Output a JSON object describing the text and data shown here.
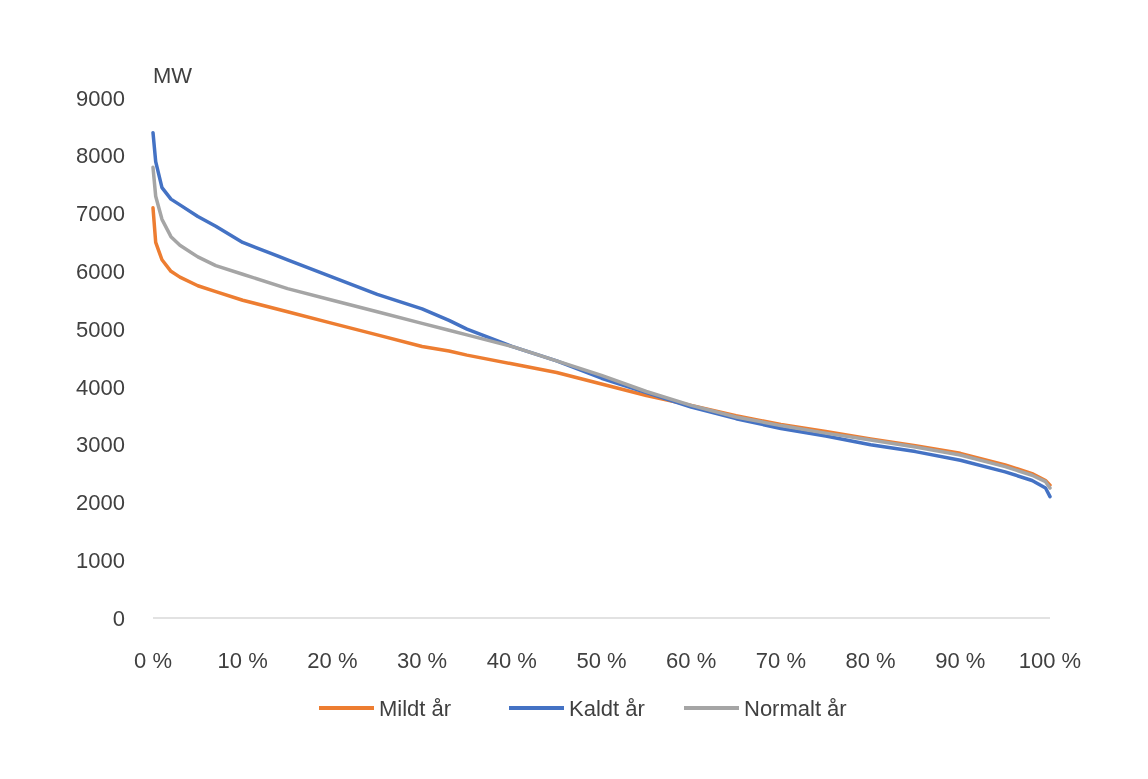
{
  "chart_data": {
    "type": "line",
    "ylabel": "MW",
    "x": [
      0,
      0.3,
      1,
      2,
      3,
      5,
      7,
      10,
      15,
      20,
      25,
      30,
      33,
      35,
      40,
      45,
      50,
      55,
      60,
      65,
      70,
      75,
      80,
      85,
      90,
      95,
      98,
      99.5,
      100
    ],
    "series": [
      {
        "name": "Mildt år",
        "color": "#ed7d31",
        "values": [
          7100,
          6500,
          6200,
          6000,
          5900,
          5750,
          5650,
          5500,
          5300,
          5100,
          4900,
          4700,
          4620,
          4550,
          4400,
          4250,
          4050,
          3850,
          3680,
          3500,
          3350,
          3230,
          3100,
          2980,
          2850,
          2650,
          2500,
          2380,
          2300
        ]
      },
      {
        "name": "Kaldt år",
        "color": "#4472c4",
        "values": [
          8400,
          7900,
          7450,
          7250,
          7150,
          6950,
          6780,
          6500,
          6200,
          5900,
          5600,
          5350,
          5150,
          5000,
          4700,
          4450,
          4150,
          3900,
          3650,
          3450,
          3280,
          3150,
          3000,
          2880,
          2730,
          2530,
          2380,
          2250,
          2100
        ]
      },
      {
        "name": "Normalt år",
        "color": "#a5a5a5",
        "values": [
          7800,
          7300,
          6900,
          6600,
          6450,
          6250,
          6100,
          5950,
          5700,
          5500,
          5300,
          5100,
          4980,
          4900,
          4700,
          4450,
          4200,
          3920,
          3680,
          3480,
          3330,
          3200,
          3080,
          2960,
          2820,
          2620,
          2470,
          2360,
          2250
        ]
      }
    ],
    "xlim": [
      0,
      100
    ],
    "xticks": [
      {
        "value": 0,
        "label": "0 %"
      },
      {
        "value": 10,
        "label": "10 %"
      },
      {
        "value": 20,
        "label": "20 %"
      },
      {
        "value": 30,
        "label": "30 %"
      },
      {
        "value": 40,
        "label": "40 %"
      },
      {
        "value": 50,
        "label": "50 %"
      },
      {
        "value": 60,
        "label": "60 %"
      },
      {
        "value": 70,
        "label": "70 %"
      },
      {
        "value": 80,
        "label": "80 %"
      },
      {
        "value": 90,
        "label": "90 %"
      },
      {
        "value": 100,
        "label": "100 %"
      }
    ],
    "ylim": [
      0,
      9000
    ],
    "yticks": [
      0,
      1000,
      2000,
      3000,
      4000,
      5000,
      6000,
      7000,
      8000,
      9000
    ],
    "grid": false,
    "legend": "bottom",
    "marker": "none",
    "line_style": "solid"
  }
}
